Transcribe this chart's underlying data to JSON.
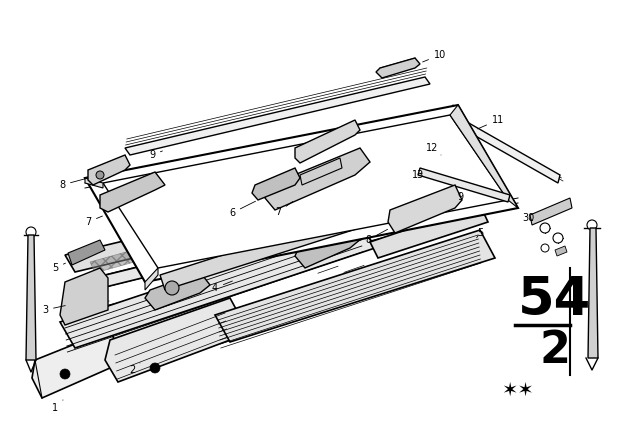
{
  "bg_color": "#ffffff",
  "fig_width": 6.4,
  "fig_height": 4.48,
  "dpi": 100,
  "label_54": "54",
  "label_2": "2",
  "label_stars": "★★",
  "line_color": "#000000"
}
